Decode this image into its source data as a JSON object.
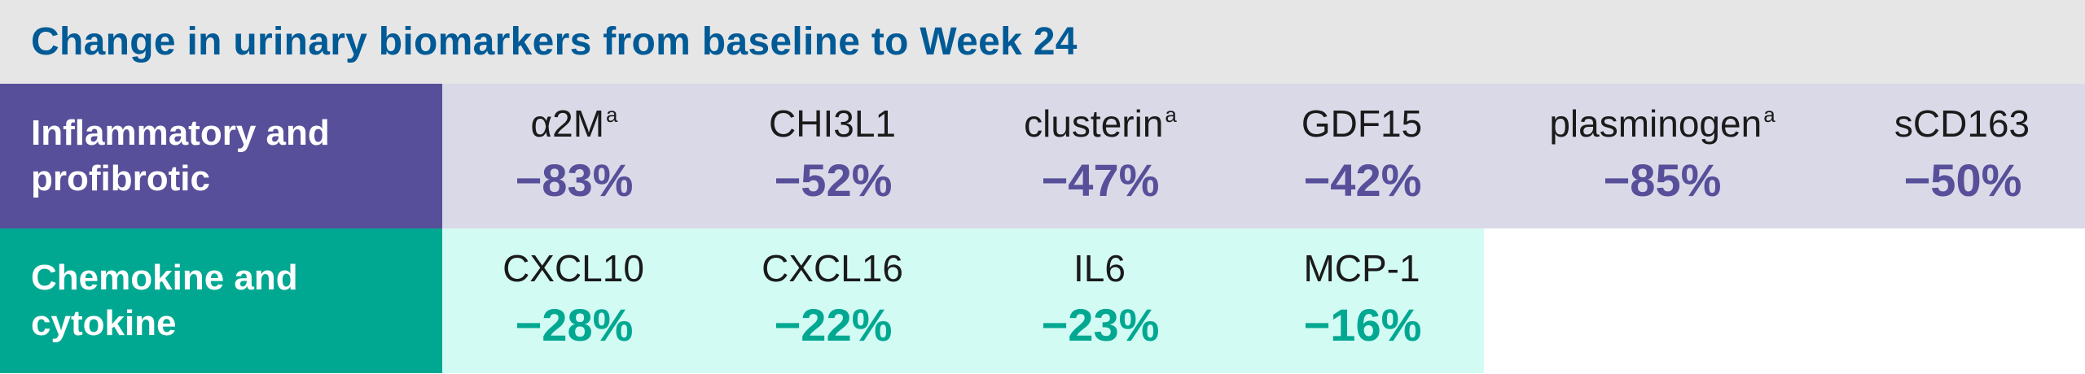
{
  "title": "Change in urinary biomarkers from baseline to Week 24",
  "colors": {
    "title_text": "#005a96",
    "title_bg": "#e6e6e6",
    "inflammatory_label_bg": "#574f99",
    "inflammatory_cells_bg": "#dad9e8",
    "chemokine_label_bg": "#00a891",
    "chemokine_cells_bg": "#d2fbf4"
  },
  "rows": [
    {
      "label": "Inflammatory and profibrotic",
      "markers": [
        {
          "name": "α2M",
          "sup": "a",
          "value": "−83%"
        },
        {
          "name": "CHI3L1",
          "sup": "",
          "value": "−52%"
        },
        {
          "name": "clusterin",
          "sup": "a",
          "value": "−47%"
        },
        {
          "name": "GDF15",
          "sup": "",
          "value": "−42%"
        },
        {
          "name": "plasminogen",
          "sup": "a",
          "value": "−85%"
        },
        {
          "name": "sCD163",
          "sup": "",
          "value": "−50%"
        }
      ]
    },
    {
      "label": "Chemokine and cytokine",
      "markers": [
        {
          "name": "CXCL10",
          "sup": "",
          "value": "−28%"
        },
        {
          "name": "CXCL16",
          "sup": "",
          "value": "−22%"
        },
        {
          "name": "IL6",
          "sup": "",
          "value": "−23%"
        },
        {
          "name": "MCP-1",
          "sup": "",
          "value": "−16%"
        }
      ]
    }
  ]
}
